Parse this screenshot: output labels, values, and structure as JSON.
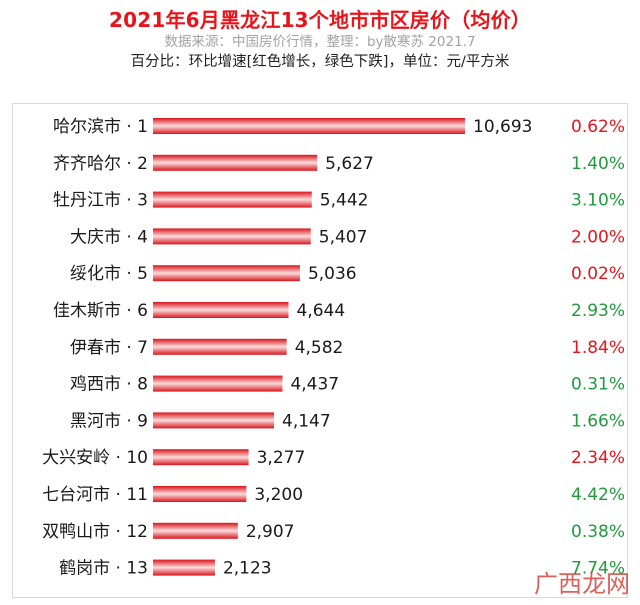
{
  "header": {
    "title": "2021年6月黑龙江13个地市市区房价（均价）",
    "subtitle": "数据来源：中国房价行情，整理：by散寒苏  2021.7",
    "note": "百分比：环比增速[红色增长，绿色下跌]，单位：元/平方米"
  },
  "watermark": "广西龙网",
  "colors": {
    "title": "#e8141b",
    "bar_edge": "#d9141b",
    "bar_light": "#fbdcdc",
    "up": "#e8141b",
    "down": "#1e9b3b"
  },
  "chart_data": {
    "type": "bar",
    "orientation": "horizontal",
    "categories": [
      "哈尔滨市 · 1",
      "齐齐哈尔 · 2",
      "牡丹江市 · 3",
      "大庆市 · 4",
      "绥化市 · 5",
      "佳木斯市 · 6",
      "伊春市 · 7",
      "鸡西市 · 8",
      "黑河市 · 9",
      "大兴安岭 · 10",
      "七台河市 · 11",
      "双鸭山市 · 12",
      "鹤岗市 · 13"
    ],
    "values": [
      10693,
      5627,
      5442,
      5407,
      5036,
      4644,
      4582,
      4437,
      4147,
      3277,
      3200,
      2907,
      2123
    ],
    "value_labels": [
      "10,693",
      "5,627",
      "5,442",
      "5,407",
      "5,036",
      "4,644",
      "4,582",
      "4,437",
      "4,147",
      "3,277",
      "3,200",
      "2,907",
      "2,123"
    ],
    "growth_labels": [
      "0.62%",
      "1.40%",
      "3.10%",
      "2.00%",
      "0.02%",
      "2.93%",
      "1.84%",
      "0.31%",
      "1.66%",
      "2.34%",
      "4.42%",
      "0.38%",
      "7.74%"
    ],
    "growth_direction": [
      "up",
      "down",
      "down",
      "up",
      "up",
      "down",
      "up",
      "down",
      "down",
      "up",
      "down",
      "down",
      "down"
    ],
    "xlim": [
      0,
      10693
    ],
    "grid": false,
    "legend": "none"
  }
}
